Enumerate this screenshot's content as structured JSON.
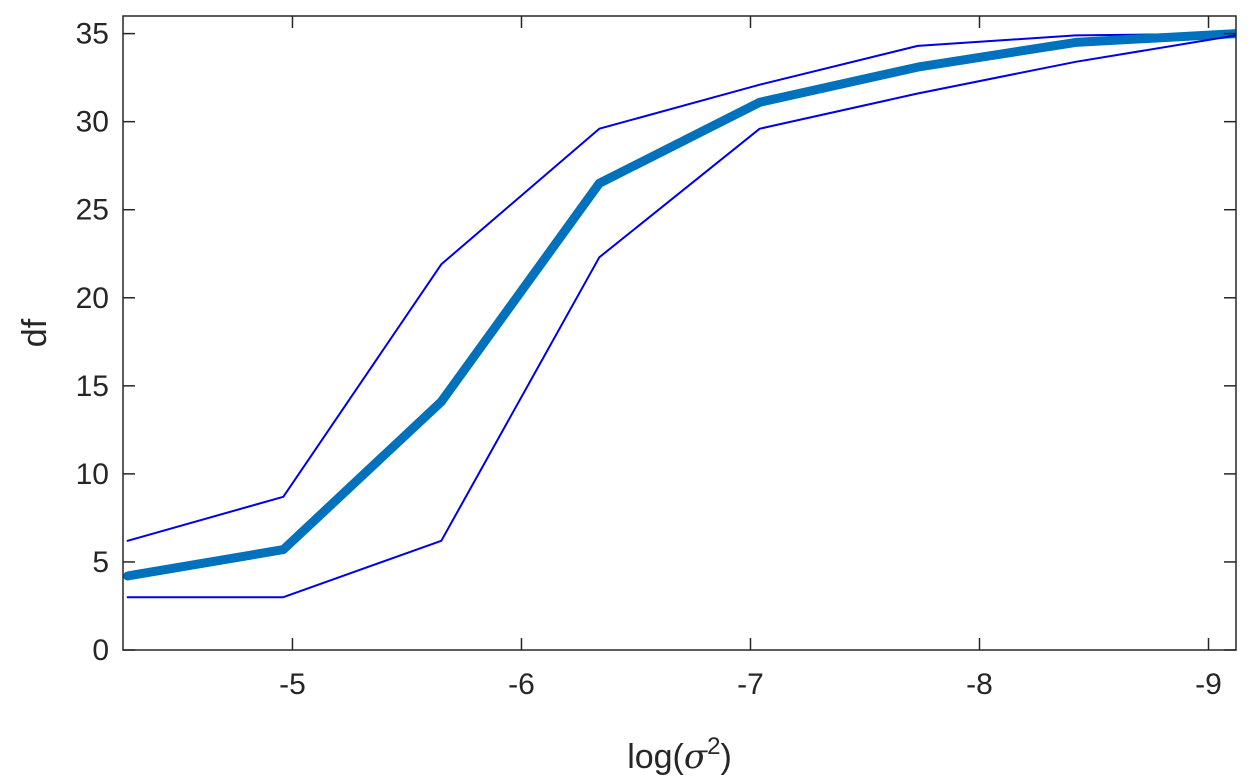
{
  "chart_data": {
    "type": "line",
    "title": "",
    "xlabel": "log(σ²)",
    "xlabel_parts": {
      "prefix": "log(",
      "symbol": "σ",
      "superscript": "2",
      "suffix": ")"
    },
    "ylabel": "df",
    "x_direction": "reversed",
    "xlim": [
      -4.26,
      -9.12
    ],
    "ylim": [
      0,
      36
    ],
    "x_ticks": [
      -5,
      -6,
      -7,
      -8,
      -9
    ],
    "x_tick_labels": [
      "-5",
      "-6",
      "-7",
      "-8",
      "-9"
    ],
    "y_ticks": [
      0,
      5,
      10,
      15,
      20,
      25,
      30,
      35
    ],
    "y_tick_labels": [
      "0",
      "5",
      "10",
      "15",
      "20",
      "25",
      "30",
      "35"
    ],
    "grid": false,
    "legend": "none",
    "x": [
      -4.28,
      -4.96,
      -5.65,
      -6.34,
      -7.04,
      -7.73,
      -8.42,
      -9.12
    ],
    "series": [
      {
        "role": "upper",
        "color": "#0000E6",
        "values": [
          6.2,
          8.7,
          21.9,
          29.6,
          32.1,
          34.3,
          34.9,
          35.0
        ]
      },
      {
        "role": "central",
        "color": "#0072BD",
        "values": [
          4.2,
          5.7,
          14.1,
          26.5,
          31.1,
          33.1,
          34.5,
          35.0
        ]
      },
      {
        "role": "lower",
        "color": "#0000E6",
        "values": [
          3.0,
          3.0,
          6.2,
          22.3,
          29.6,
          31.6,
          33.4,
          34.9
        ]
      }
    ]
  }
}
